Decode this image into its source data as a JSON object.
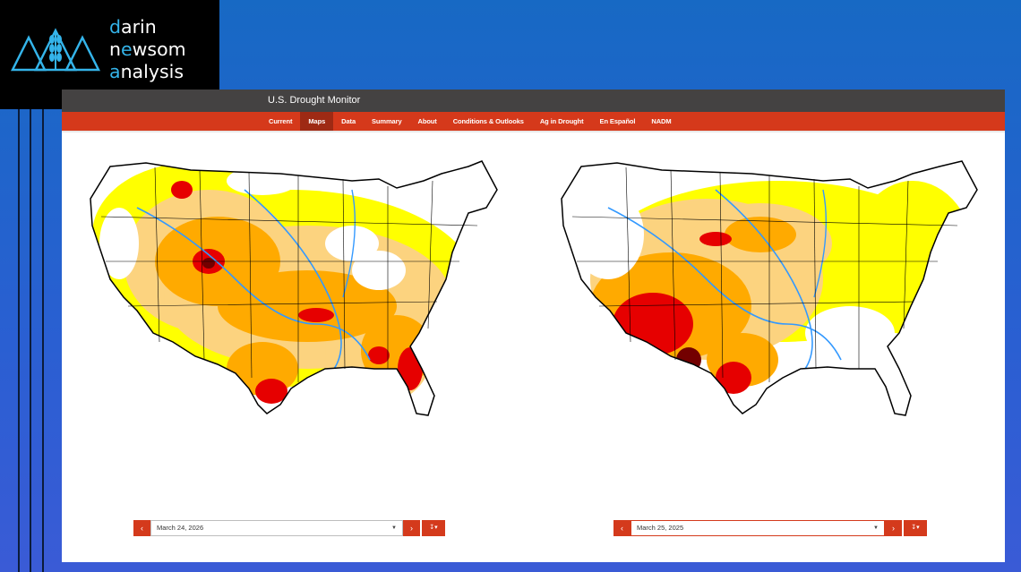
{
  "logo": {
    "line1_accent": "d",
    "line1_rest": "arin",
    "line2_pre": "n",
    "line2_accent": "e",
    "line2_mid": "w",
    "line2_rest": "som",
    "line3_accent": "a",
    "line3_rest": "nalysis",
    "icon": "mountains-wheat-icon"
  },
  "site": {
    "title": "U.S. Drought Monitor"
  },
  "nav": {
    "items": [
      "Current",
      "Maps",
      "Data",
      "Summary",
      "About",
      "Conditions & Outlooks",
      "Ag in Drought",
      "En Español",
      "NADM"
    ],
    "active": "Maps"
  },
  "left_map": {
    "date": "March 24, 2026",
    "prev_icon": "chevron-left-icon",
    "next_icon": "chevron-right-icon",
    "download_icon": "download-icon"
  },
  "right_map": {
    "date": "March 25, 2025",
    "prev_icon": "chevron-left-icon",
    "next_icon": "chevron-right-icon",
    "download_icon": "download-icon"
  },
  "colors": {
    "d0": "#ffff00",
    "d1": "#fcd37f",
    "d2": "#ffaa00",
    "d3": "#e60000",
    "d4": "#730000",
    "water": "#3399ff",
    "accent": "#d5391b"
  }
}
